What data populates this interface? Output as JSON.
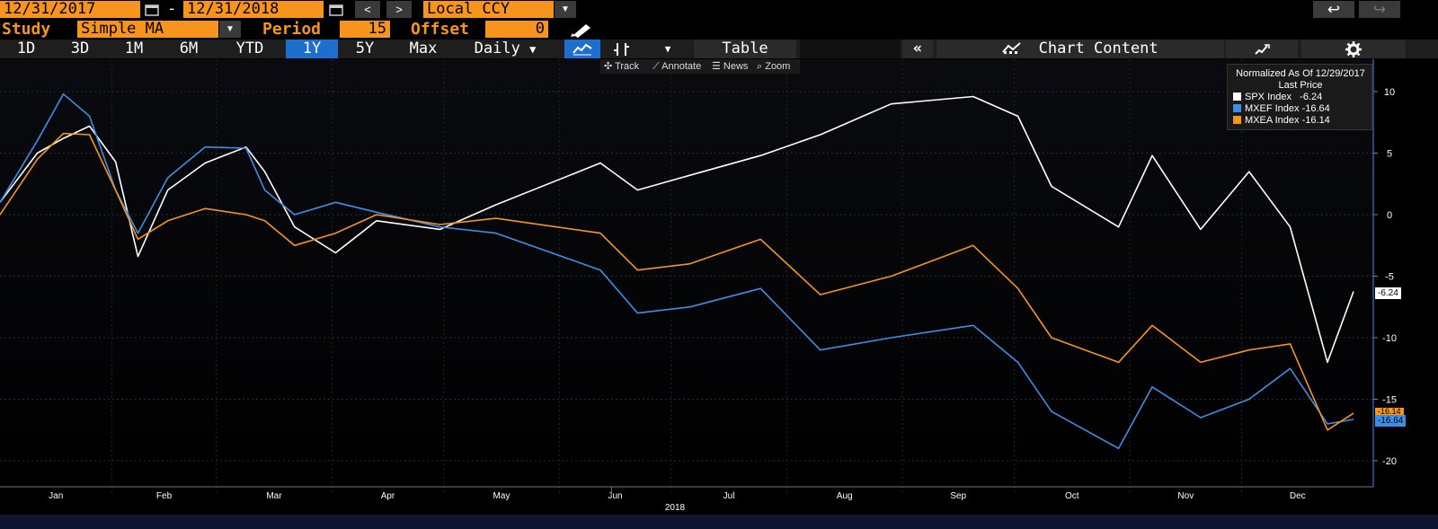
{
  "toolbar": {
    "start_date": "12/31/2017",
    "dash": "-",
    "end_date": "12/31/2018",
    "prev": "<",
    "next": ">",
    "currency": "Local CCY",
    "currency_arrow": "▼",
    "back_icon": "↩",
    "fwd_icon": "↪",
    "study_label": "Study",
    "study_value": "Simple MA",
    "study_arrow": "▼",
    "period_label": "Period",
    "period_value": "15",
    "offset_label": "Offset",
    "offset_value": "0"
  },
  "ranges": [
    "1D",
    "3D",
    "1M",
    "6M",
    "YTD",
    "1Y",
    "5Y",
    "Max"
  ],
  "active_range": "1Y",
  "frequency": "Daily",
  "frequency_arrow": "▼",
  "table_label": "Table",
  "collapse_icon": "«",
  "chart_content_label": "Chart Content",
  "subtoolbar": {
    "track": "Track",
    "annotate": "Annotate",
    "news": "News",
    "zoom": "Zoom"
  },
  "legend": {
    "title": "Normalized As Of 12/29/2017",
    "subtitle": "Last Price",
    "rows": [
      {
        "name": "SPX Index",
        "value": "-6.24",
        "color": "#ffffff"
      },
      {
        "name": "MXEF Index",
        "value": "-16.64",
        "color": "#3d8ee6"
      },
      {
        "name": "MXEA Index",
        "value": "-16.14",
        "color": "#f7941d"
      }
    ]
  },
  "value_tags": {
    "spx": "-6.24",
    "mxef": "-16.64",
    "mxea": "-16.14"
  },
  "chart_data": {
    "type": "line",
    "title": "",
    "xlabel": "2018",
    "ylabel": "",
    "ylim": [
      -22,
      12
    ],
    "yticks": [
      10,
      5,
      0,
      -5,
      -10,
      -15,
      -20
    ],
    "x_months": [
      "Jan",
      "Feb",
      "Mar",
      "Apr",
      "May",
      "Jun",
      "Jul",
      "Aug",
      "Sep",
      "Oct",
      "Nov",
      "Dec"
    ],
    "x": [
      "2018-01-02",
      "2018-01-12",
      "2018-01-19",
      "2018-01-26",
      "2018-02-02",
      "2018-02-08",
      "2018-02-16",
      "2018-02-26",
      "2018-03-09",
      "2018-03-14",
      "2018-03-22",
      "2018-04-02",
      "2018-04-13",
      "2018-04-30",
      "2018-05-15",
      "2018-06-12",
      "2018-06-22",
      "2018-07-06",
      "2018-07-25",
      "2018-08-10",
      "2018-08-29",
      "2018-09-20",
      "2018-10-02",
      "2018-10-11",
      "2018-10-29",
      "2018-11-07",
      "2018-11-20",
      "2018-12-03",
      "2018-12-14",
      "2018-12-24",
      "2018-12-31"
    ],
    "series": [
      {
        "name": "SPX Index",
        "color": "#ffffff",
        "values": [
          1.0,
          5.0,
          6.2,
          7.2,
          4.3,
          -3.4,
          2.0,
          4.2,
          5.5,
          3.5,
          -1.0,
          -3.1,
          -0.5,
          -1.2,
          0.8,
          4.2,
          2.0,
          3.2,
          4.8,
          6.5,
          9.0,
          9.6,
          8.0,
          2.3,
          -1.0,
          4.8,
          -1.2,
          3.5,
          -1.0,
          -12.0,
          -6.24
        ]
      },
      {
        "name": "MXEF Index",
        "color": "#3d8ee6",
        "values": [
          1.0,
          6.0,
          9.8,
          8.0,
          2.0,
          -1.5,
          3.0,
          5.5,
          5.4,
          2.0,
          0.0,
          1.0,
          0.2,
          -1.0,
          -1.5,
          -4.5,
          -8.0,
          -7.5,
          -6.0,
          -11.0,
          -10.0,
          -9.0,
          -12.0,
          -16.0,
          -19.0,
          -14.0,
          -16.5,
          -15.0,
          -12.5,
          -17.0,
          -16.64
        ]
      },
      {
        "name": "MXEA Index",
        "color": "#f7941d",
        "values": [
          0.0,
          4.5,
          6.6,
          6.5,
          2.0,
          -2.0,
          -0.5,
          0.5,
          0.0,
          -0.5,
          -2.5,
          -1.5,
          0.0,
          -0.8,
          -0.3,
          -1.5,
          -4.5,
          -4.0,
          -2.0,
          -6.5,
          -5.0,
          -2.5,
          -6.0,
          -10.0,
          -12.0,
          -9.0,
          -12.0,
          -11.0,
          -10.5,
          -17.5,
          -16.14
        ]
      }
    ]
  }
}
